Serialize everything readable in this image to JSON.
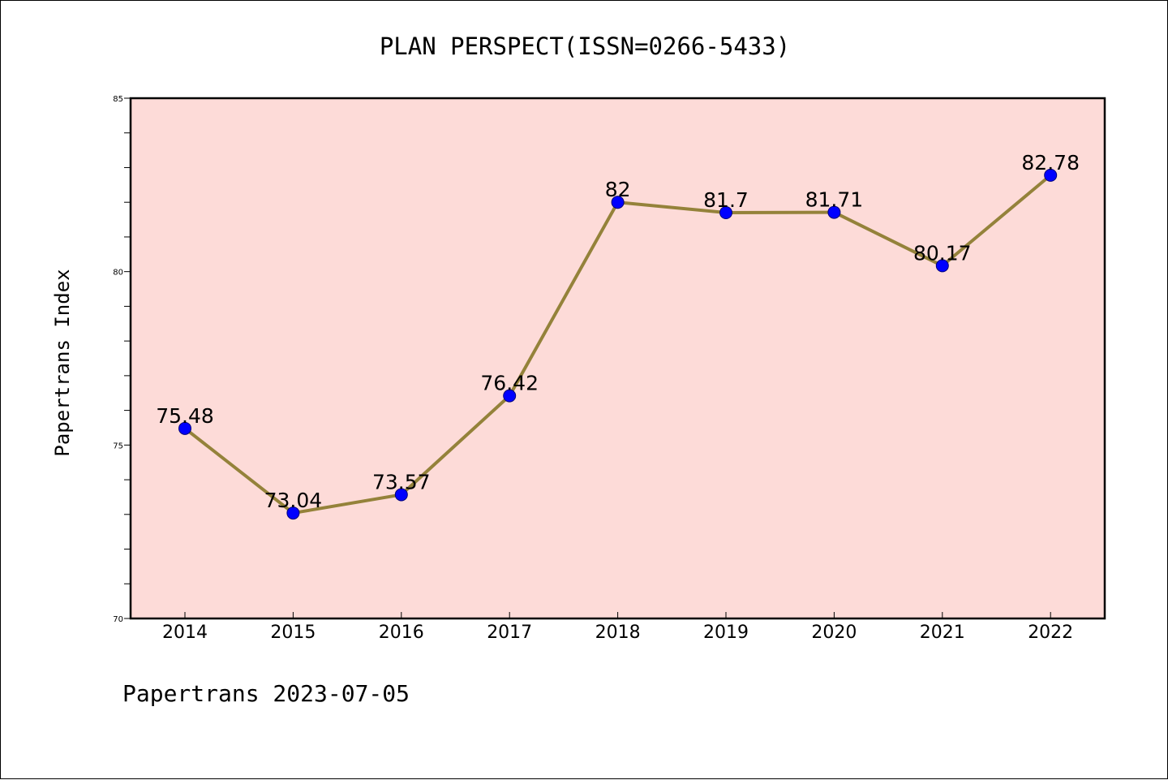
{
  "chart_data": {
    "type": "line",
    "title": "PLAN PERSPECT(ISSN=0266-5433)",
    "xlabel": "",
    "ylabel": "Papertrans Index",
    "footer": "Papertrans 2023-07-05",
    "categories": [
      "2014",
      "2015",
      "2016",
      "2017",
      "2018",
      "2019",
      "2020",
      "2021",
      "2022"
    ],
    "values": [
      75.48,
      73.04,
      73.57,
      76.42,
      82,
      81.7,
      81.71,
      80.17,
      82.78
    ],
    "data_labels": [
      "75.48",
      "73.04",
      "73.57",
      "76.42",
      "82",
      "81.7",
      "81.71",
      "80.17",
      "82.78"
    ],
    "ylim": [
      70,
      85
    ],
    "y_ticks": [
      "70",
      "75",
      "80",
      "85"
    ],
    "y_minor_step": 1,
    "grid": false,
    "legend": "none",
    "colors": {
      "plot_background": "#fddbd8",
      "line": "#94823a",
      "marker": "#0000ff",
      "axis": "#000000"
    }
  }
}
